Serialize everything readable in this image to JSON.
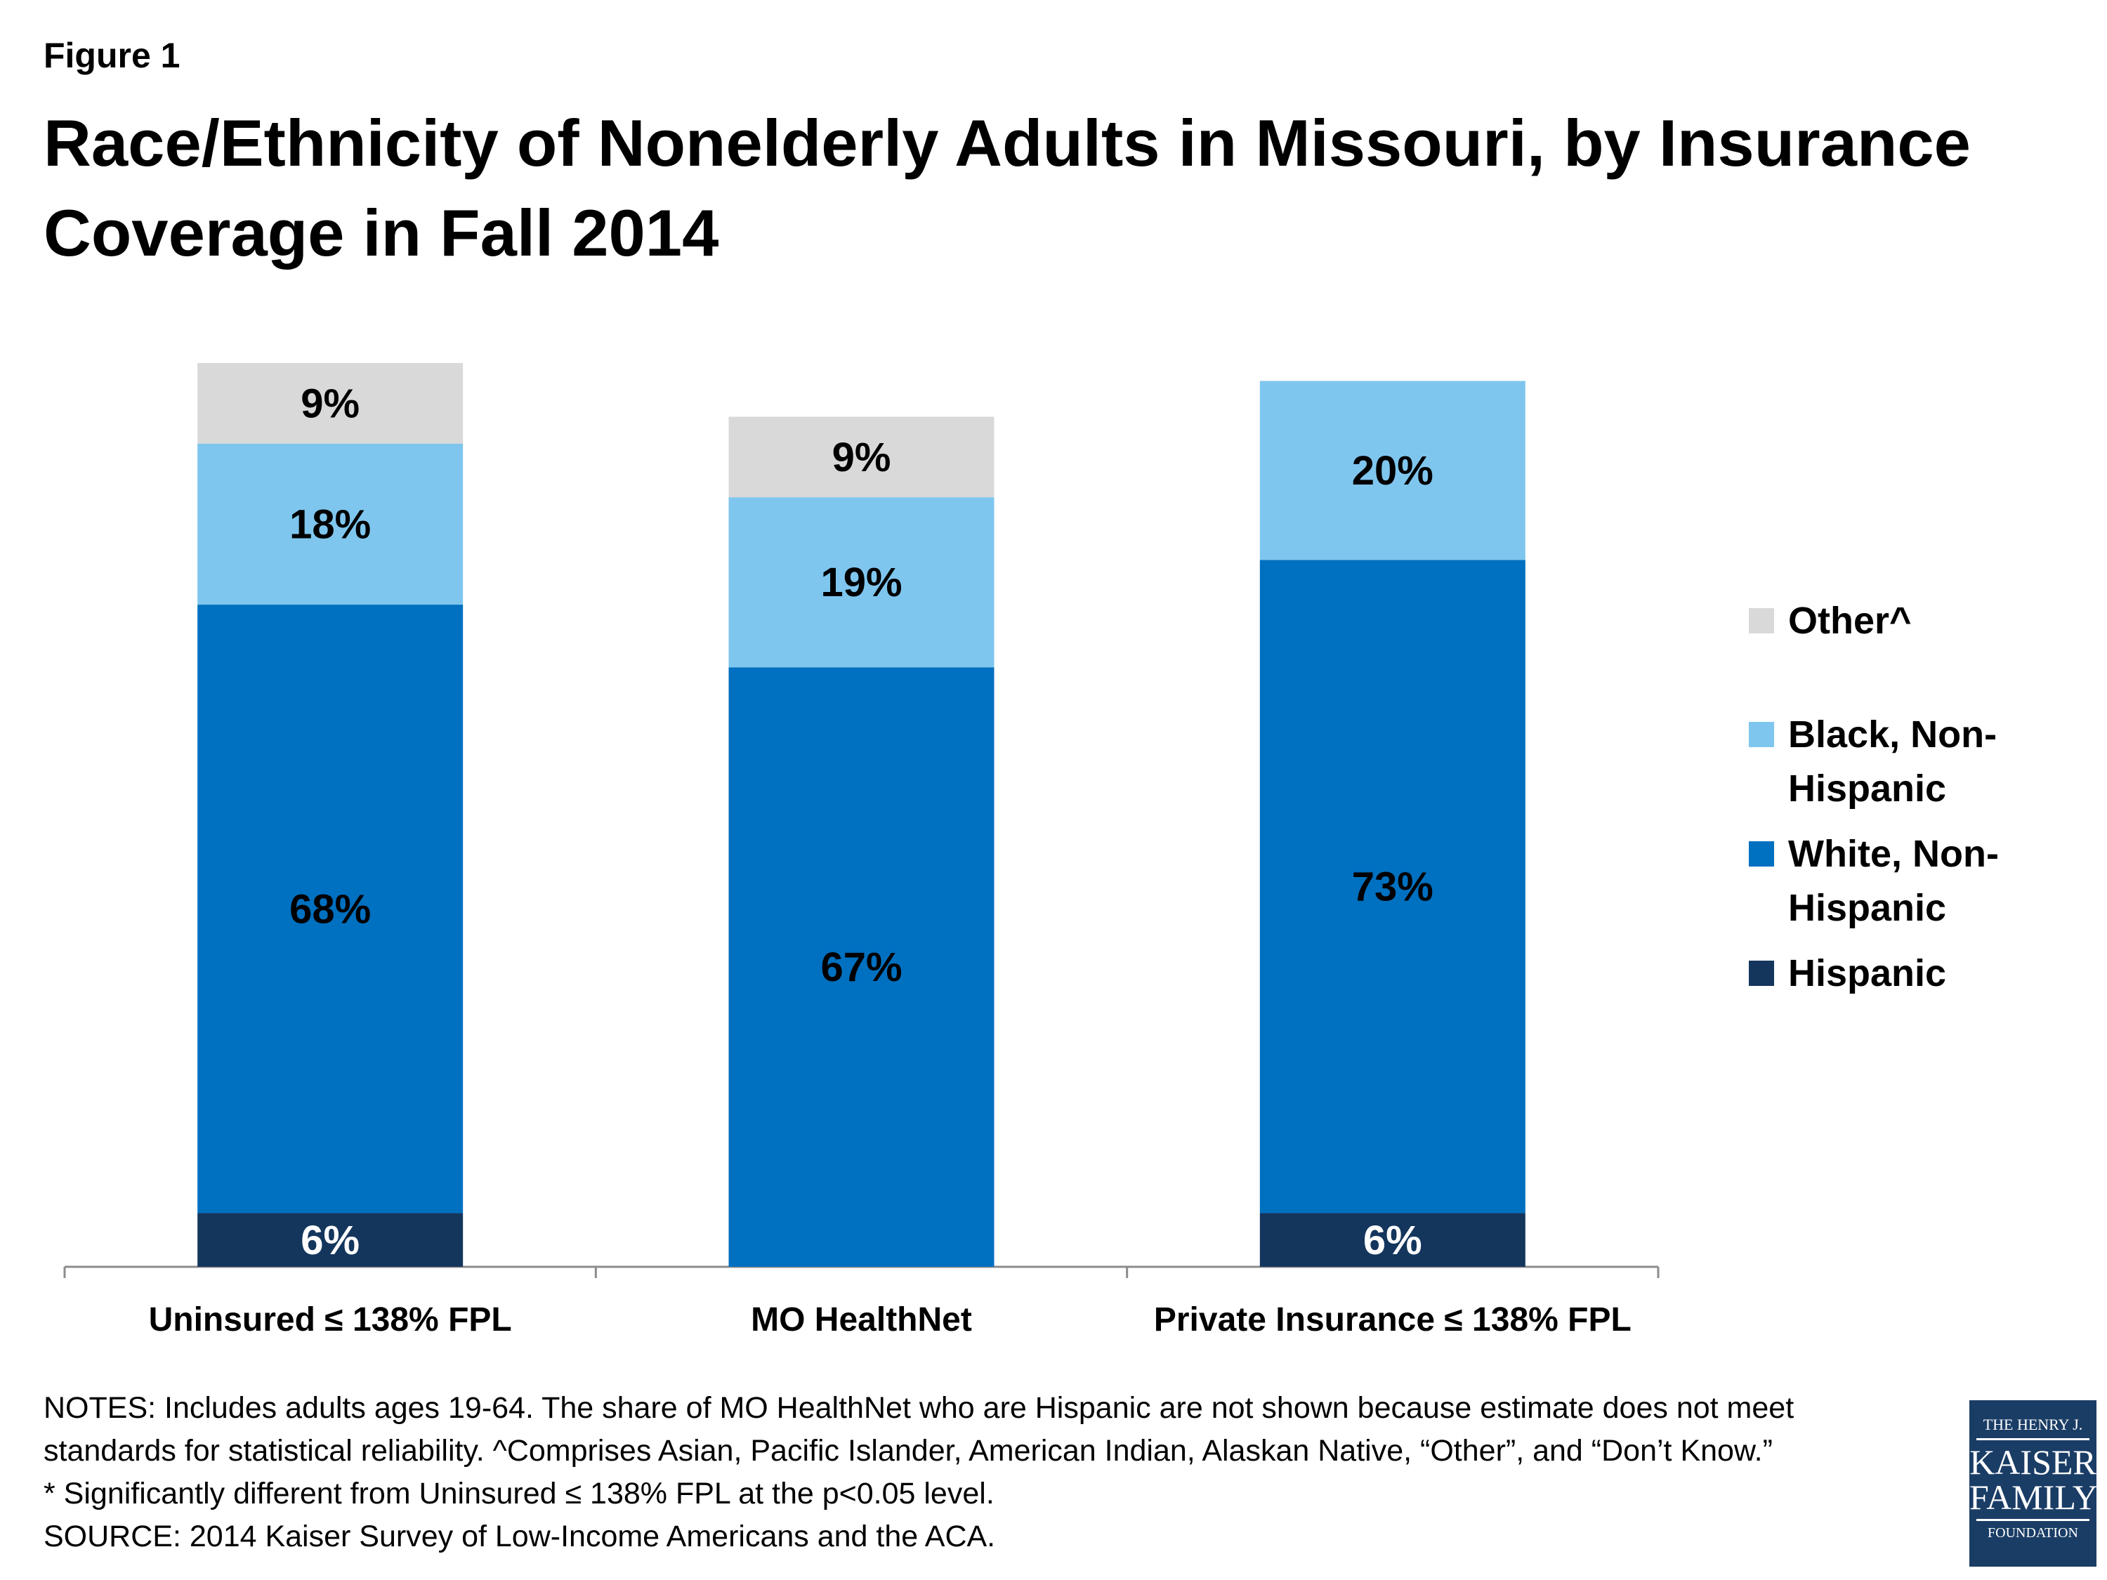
{
  "figure_label": "Figure 1",
  "chart_data": {
    "type": "bar",
    "stacked": true,
    "title": "Race/Ethnicity of Nonelderly Adults in Missouri, by Insurance Coverage in Fall 2014",
    "categories": [
      "Uninsured ≤ 138% FPL",
      "MO HealthNet",
      "Private Insurance ≤ 138% FPL"
    ],
    "series": [
      {
        "name": "Hispanic",
        "color": "#14365d",
        "label_color": "#ffffff",
        "values": [
          6,
          null,
          6
        ]
      },
      {
        "name": "White, Non-Hispanic",
        "color": "#0070c0",
        "label_color": "#000000",
        "values": [
          68,
          67,
          73
        ]
      },
      {
        "name": "Black, Non-Hispanic",
        "color": "#7fc6ee",
        "label_color": "#000000",
        "values": [
          18,
          19,
          20
        ]
      },
      {
        "name": "Other^",
        "color": "#d9d9d9",
        "label_color": "#000000",
        "values": [
          9,
          9,
          null
        ]
      }
    ],
    "value_suffix": "%",
    "ylim": [
      0,
      101
    ],
    "grid": false,
    "legend_placement": "right"
  },
  "legend_lines": {
    "Other^": [
      "Other^"
    ],
    "Black, Non-Hispanic": [
      "Black, Non-",
      "Hispanic"
    ],
    "White, Non-Hispanic": [
      "White, Non-",
      "Hispanic"
    ],
    "Hispanic": [
      "Hispanic"
    ]
  },
  "notes": [
    "NOTES: Includes adults ages 19-64. The share of MO HealthNet who are Hispanic are not shown because estimate does not meet",
    "standards for statistical reliability. ^Comprises Asian, Pacific Islander, American Indian, Alaskan Native, “Other”, and “Don’t Know.”",
    "* Significantly different from Uninsured ≤ 138% FPL at the p<0.05 level.",
    "SOURCE: 2014 Kaiser Survey of Low-Income Americans and the ACA."
  ],
  "logo": {
    "line1": "THE HENRY J.",
    "line2": "KAISER",
    "line3": "FAMILY",
    "line4": "FOUNDATION"
  }
}
